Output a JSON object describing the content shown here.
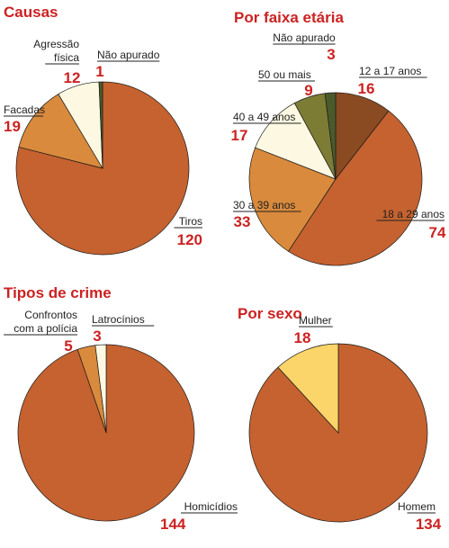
{
  "chart_data": [
    {
      "type": "pie",
      "title": "Causas",
      "slices": [
        {
          "label": "Tiros",
          "value": 120,
          "color": "#c5622f"
        },
        {
          "label": "Facadas",
          "value": 19,
          "color": "#d98a3c"
        },
        {
          "label": "Agressão física",
          "value": 12,
          "color": "#fdf8e2"
        },
        {
          "label": "Não apurado",
          "value": 1,
          "color": "#4b5a2a"
        }
      ]
    },
    {
      "type": "pie",
      "title": "Por faixa etária",
      "slices": [
        {
          "label": "12 a 17 anos",
          "value": 16,
          "color": "#8a4a22"
        },
        {
          "label": "18 a 29 anos",
          "value": 74,
          "color": "#c5622f"
        },
        {
          "label": "30 a 39 anos",
          "value": 33,
          "color": "#d98a3c"
        },
        {
          "label": "40 a 49 anos",
          "value": 17,
          "color": "#fdf8e2"
        },
        {
          "label": "50 ou mais",
          "value": 9,
          "color": "#7d7c35"
        },
        {
          "label": "Não apurado",
          "value": 3,
          "color": "#4b5a2a"
        }
      ]
    },
    {
      "type": "pie",
      "title": "Tipos de crime",
      "slices": [
        {
          "label": "Homicídios",
          "value": 144,
          "color": "#c5622f"
        },
        {
          "label": "Confrontos com a polícia",
          "value": 5,
          "color": "#d98a3c"
        },
        {
          "label": "Latrocínios",
          "value": 3,
          "color": "#fdf8e2"
        }
      ]
    },
    {
      "type": "pie",
      "title": "Por sexo",
      "slices": [
        {
          "label": "Homem",
          "value": 134,
          "color": "#c5622f"
        },
        {
          "label": "Mulher",
          "value": 18,
          "color": "#fbd46a"
        }
      ]
    }
  ]
}
